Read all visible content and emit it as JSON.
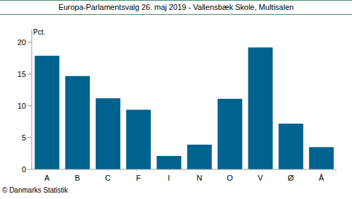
{
  "chart_data": {
    "type": "bar",
    "title": "Europa-Parlamentsvalg 26. maj 2019 - Vallensbæk Skole, Multisalen",
    "y_label": "Pct.",
    "source": "© Danmarks Statistik",
    "categories": [
      "A",
      "B",
      "C",
      "F",
      "I",
      "N",
      "O",
      "V",
      "Ø",
      "Å"
    ],
    "values": [
      17.9,
      14.7,
      11.2,
      9.4,
      2.1,
      3.9,
      11.1,
      19.2,
      7.2,
      3.5
    ],
    "color": "#00628f",
    "ylim": [
      0,
      22
    ],
    "yticks": [
      0,
      5,
      10,
      15,
      20
    ],
    "grid": false
  }
}
